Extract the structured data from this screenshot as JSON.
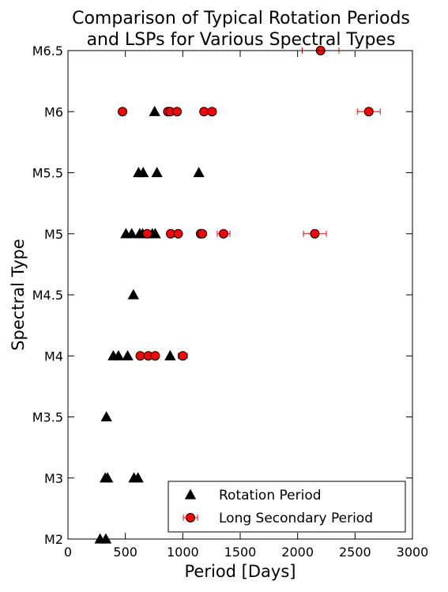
{
  "chart_data": {
    "type": "scatter",
    "title": "Comparison of Typical Rotation Periods\nand LSPs for Various Spectral Types",
    "xlabel": "Period [Days]",
    "ylabel": "Spectral Type",
    "xlim": [
      0,
      3000
    ],
    "xticks": [
      0,
      500,
      1000,
      1500,
      2000,
      2500,
      3000
    ],
    "yticks": [
      "M2",
      "M3",
      "M3.5",
      "M4",
      "M4.5",
      "M5",
      "M5.5",
      "M6",
      "M6.5"
    ],
    "ylim": [
      "M2",
      "M6.5"
    ],
    "grid": false,
    "legend": "bottom-right",
    "series": [
      {
        "name": "Rotation Period",
        "marker": "triangle",
        "color": "#000000",
        "points": [
          {
            "x": 280,
            "y": "M2"
          },
          {
            "x": 330,
            "y": "M2"
          },
          {
            "x": 325,
            "y": "M3"
          },
          {
            "x": 345,
            "y": "M3"
          },
          {
            "x": 575,
            "y": "M3"
          },
          {
            "x": 610,
            "y": "M3"
          },
          {
            "x": 335,
            "y": "M3.5"
          },
          {
            "x": 395,
            "y": "M4"
          },
          {
            "x": 440,
            "y": "M4"
          },
          {
            "x": 520,
            "y": "M4"
          },
          {
            "x": 890,
            "y": "M4"
          },
          {
            "x": 570,
            "y": "M4.5"
          },
          {
            "x": 505,
            "y": "M5"
          },
          {
            "x": 555,
            "y": "M5"
          },
          {
            "x": 625,
            "y": "M5"
          },
          {
            "x": 650,
            "y": "M5"
          },
          {
            "x": 735,
            "y": "M5"
          },
          {
            "x": 760,
            "y": "M5"
          },
          {
            "x": 615,
            "y": "M5.5"
          },
          {
            "x": 655,
            "y": "M5.5"
          },
          {
            "x": 775,
            "y": "M5.5"
          },
          {
            "x": 1140,
            "y": "M5.5"
          },
          {
            "x": 755,
            "y": "M6"
          }
        ]
      },
      {
        "name": "Long Secondary Period",
        "marker": "circle",
        "color": "#ff0000",
        "points": [
          {
            "x": 630,
            "y": "M4",
            "err": 0
          },
          {
            "x": 700,
            "y": "M4",
            "err": 0
          },
          {
            "x": 760,
            "y": "M4",
            "err": 0
          },
          {
            "x": 1000,
            "y": "M4",
            "err": 40
          },
          {
            "x": 690,
            "y": "M5",
            "err": 0
          },
          {
            "x": 895,
            "y": "M5",
            "err": 0
          },
          {
            "x": 960,
            "y": "M5",
            "err": 0
          },
          {
            "x": 1155,
            "y": "M5",
            "err": 0
          },
          {
            "x": 1170,
            "y": "M5",
            "err": 0
          },
          {
            "x": 1355,
            "y": "M5",
            "err": 55
          },
          {
            "x": 2150,
            "y": "M5",
            "err": 100
          },
          {
            "x": 475,
            "y": "M6",
            "err": 0
          },
          {
            "x": 870,
            "y": "M6",
            "err": 0
          },
          {
            "x": 890,
            "y": "M6",
            "err": 0
          },
          {
            "x": 950,
            "y": "M6",
            "err": 0
          },
          {
            "x": 1185,
            "y": "M6",
            "err": 0
          },
          {
            "x": 1255,
            "y": "M6",
            "err": 35
          },
          {
            "x": 2620,
            "y": "M6",
            "err": 100
          },
          {
            "x": 2200,
            "y": "M6.5",
            "err": 160
          }
        ]
      }
    ]
  }
}
